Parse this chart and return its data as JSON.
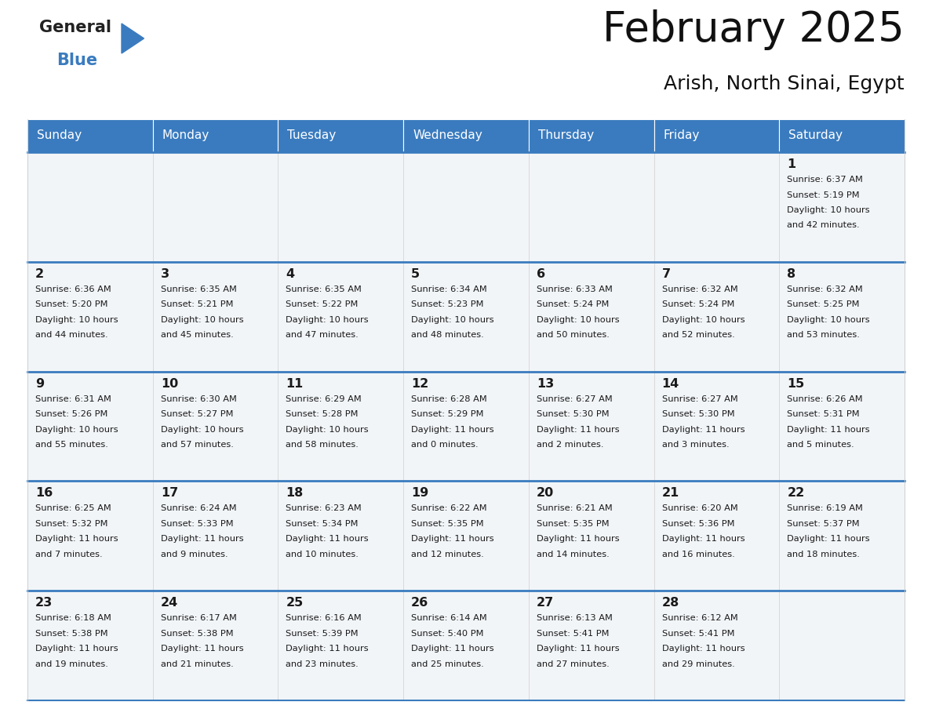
{
  "title": "February 2025",
  "subtitle": "Arish, North Sinai, Egypt",
  "header_color": "#3a7bbf",
  "header_text_color": "#ffffff",
  "cell_bg_color": "#f2f5f8",
  "border_color": "#3a7bbf",
  "cell_border_color": "#cccccc",
  "day_headers": [
    "Sunday",
    "Monday",
    "Tuesday",
    "Wednesday",
    "Thursday",
    "Friday",
    "Saturday"
  ],
  "weeks": [
    [
      {
        "day": "",
        "info": ""
      },
      {
        "day": "",
        "info": ""
      },
      {
        "day": "",
        "info": ""
      },
      {
        "day": "",
        "info": ""
      },
      {
        "day": "",
        "info": ""
      },
      {
        "day": "",
        "info": ""
      },
      {
        "day": "1",
        "info": "Sunrise: 6:37 AM\nSunset: 5:19 PM\nDaylight: 10 hours\nand 42 minutes."
      }
    ],
    [
      {
        "day": "2",
        "info": "Sunrise: 6:36 AM\nSunset: 5:20 PM\nDaylight: 10 hours\nand 44 minutes."
      },
      {
        "day": "3",
        "info": "Sunrise: 6:35 AM\nSunset: 5:21 PM\nDaylight: 10 hours\nand 45 minutes."
      },
      {
        "day": "4",
        "info": "Sunrise: 6:35 AM\nSunset: 5:22 PM\nDaylight: 10 hours\nand 47 minutes."
      },
      {
        "day": "5",
        "info": "Sunrise: 6:34 AM\nSunset: 5:23 PM\nDaylight: 10 hours\nand 48 minutes."
      },
      {
        "day": "6",
        "info": "Sunrise: 6:33 AM\nSunset: 5:24 PM\nDaylight: 10 hours\nand 50 minutes."
      },
      {
        "day": "7",
        "info": "Sunrise: 6:32 AM\nSunset: 5:24 PM\nDaylight: 10 hours\nand 52 minutes."
      },
      {
        "day": "8",
        "info": "Sunrise: 6:32 AM\nSunset: 5:25 PM\nDaylight: 10 hours\nand 53 minutes."
      }
    ],
    [
      {
        "day": "9",
        "info": "Sunrise: 6:31 AM\nSunset: 5:26 PM\nDaylight: 10 hours\nand 55 minutes."
      },
      {
        "day": "10",
        "info": "Sunrise: 6:30 AM\nSunset: 5:27 PM\nDaylight: 10 hours\nand 57 minutes."
      },
      {
        "day": "11",
        "info": "Sunrise: 6:29 AM\nSunset: 5:28 PM\nDaylight: 10 hours\nand 58 minutes."
      },
      {
        "day": "12",
        "info": "Sunrise: 6:28 AM\nSunset: 5:29 PM\nDaylight: 11 hours\nand 0 minutes."
      },
      {
        "day": "13",
        "info": "Sunrise: 6:27 AM\nSunset: 5:30 PM\nDaylight: 11 hours\nand 2 minutes."
      },
      {
        "day": "14",
        "info": "Sunrise: 6:27 AM\nSunset: 5:30 PM\nDaylight: 11 hours\nand 3 minutes."
      },
      {
        "day": "15",
        "info": "Sunrise: 6:26 AM\nSunset: 5:31 PM\nDaylight: 11 hours\nand 5 minutes."
      }
    ],
    [
      {
        "day": "16",
        "info": "Sunrise: 6:25 AM\nSunset: 5:32 PM\nDaylight: 11 hours\nand 7 minutes."
      },
      {
        "day": "17",
        "info": "Sunrise: 6:24 AM\nSunset: 5:33 PM\nDaylight: 11 hours\nand 9 minutes."
      },
      {
        "day": "18",
        "info": "Sunrise: 6:23 AM\nSunset: 5:34 PM\nDaylight: 11 hours\nand 10 minutes."
      },
      {
        "day": "19",
        "info": "Sunrise: 6:22 AM\nSunset: 5:35 PM\nDaylight: 11 hours\nand 12 minutes."
      },
      {
        "day": "20",
        "info": "Sunrise: 6:21 AM\nSunset: 5:35 PM\nDaylight: 11 hours\nand 14 minutes."
      },
      {
        "day": "21",
        "info": "Sunrise: 6:20 AM\nSunset: 5:36 PM\nDaylight: 11 hours\nand 16 minutes."
      },
      {
        "day": "22",
        "info": "Sunrise: 6:19 AM\nSunset: 5:37 PM\nDaylight: 11 hours\nand 18 minutes."
      }
    ],
    [
      {
        "day": "23",
        "info": "Sunrise: 6:18 AM\nSunset: 5:38 PM\nDaylight: 11 hours\nand 19 minutes."
      },
      {
        "day": "24",
        "info": "Sunrise: 6:17 AM\nSunset: 5:38 PM\nDaylight: 11 hours\nand 21 minutes."
      },
      {
        "day": "25",
        "info": "Sunrise: 6:16 AM\nSunset: 5:39 PM\nDaylight: 11 hours\nand 23 minutes."
      },
      {
        "day": "26",
        "info": "Sunrise: 6:14 AM\nSunset: 5:40 PM\nDaylight: 11 hours\nand 25 minutes."
      },
      {
        "day": "27",
        "info": "Sunrise: 6:13 AM\nSunset: 5:41 PM\nDaylight: 11 hours\nand 27 minutes."
      },
      {
        "day": "28",
        "info": "Sunrise: 6:12 AM\nSunset: 5:41 PM\nDaylight: 11 hours\nand 29 minutes."
      },
      {
        "day": "",
        "info": ""
      }
    ]
  ],
  "fig_width": 11.88,
  "fig_height": 9.18,
  "dpi": 100
}
